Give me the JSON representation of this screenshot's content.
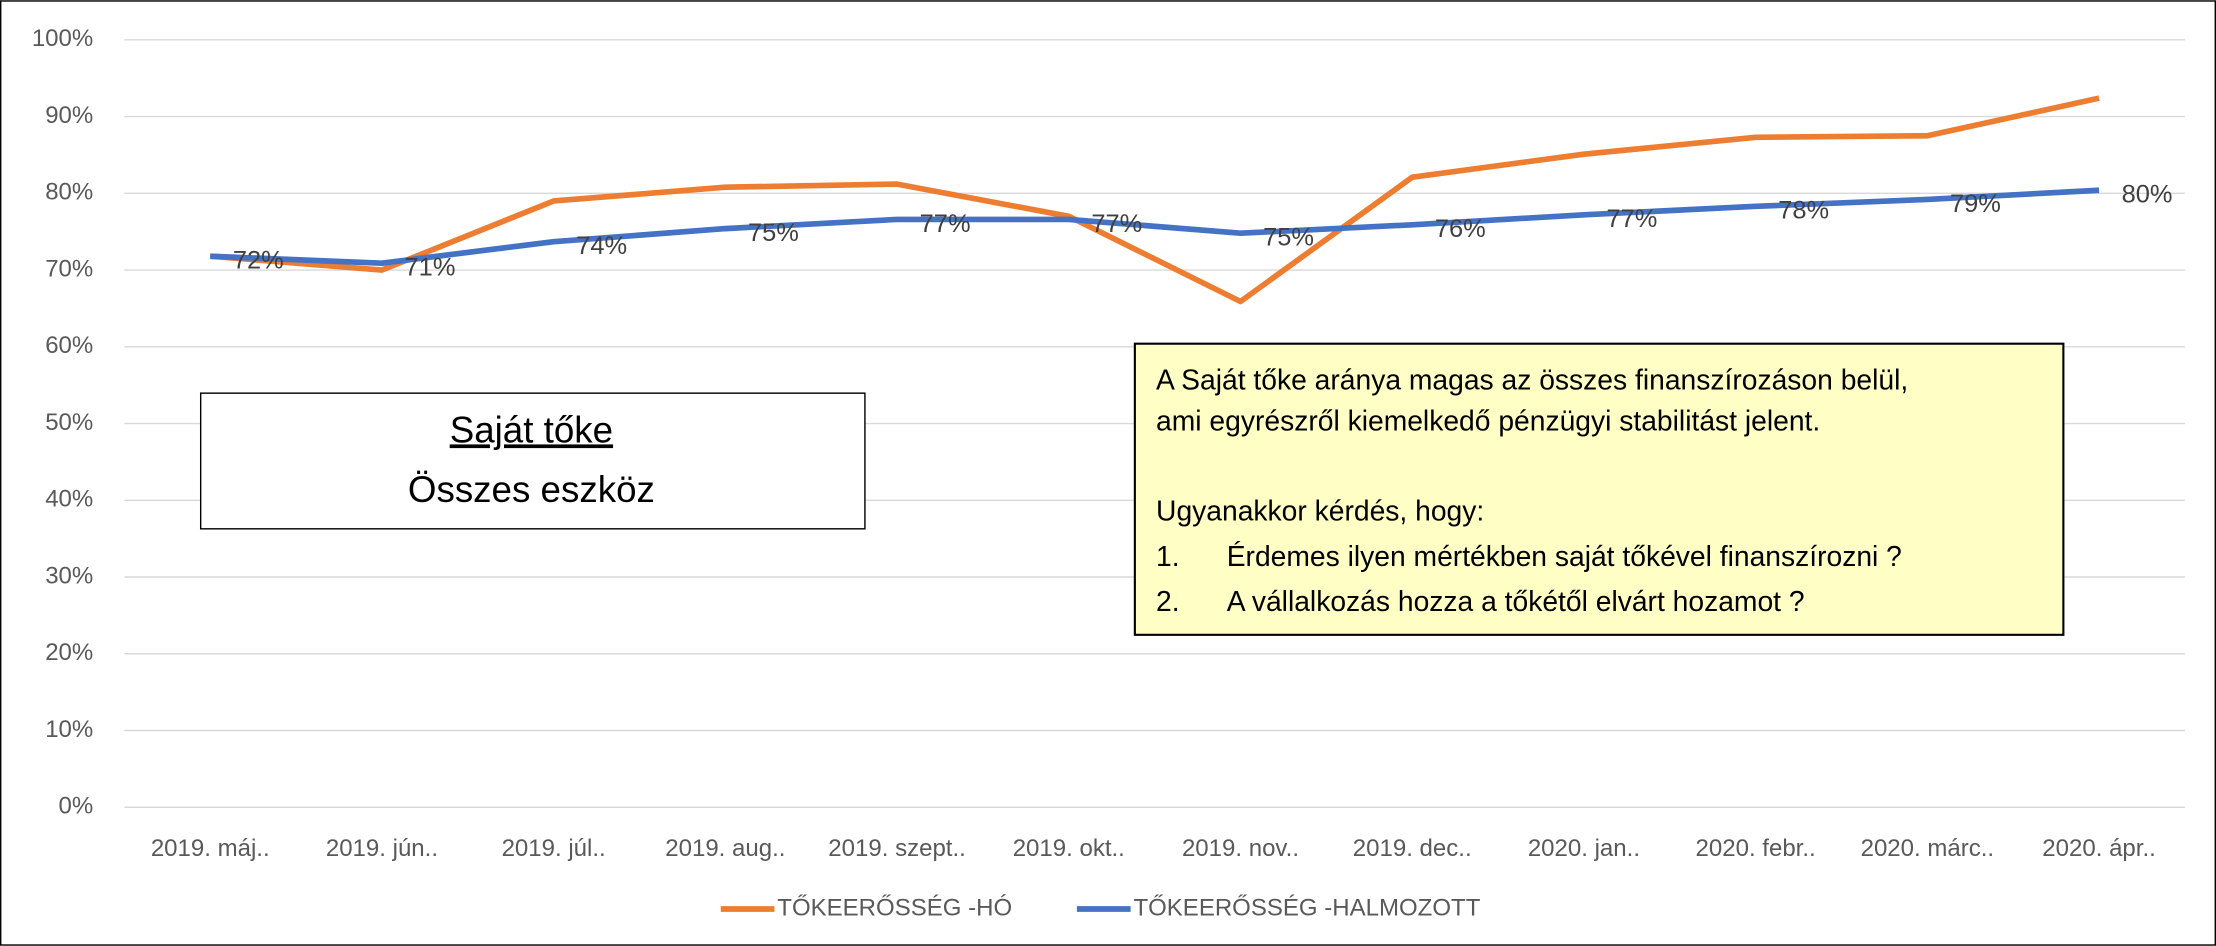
{
  "chart_data": {
    "type": "line",
    "categories": [
      "2019. máj..",
      "2019. jún..",
      "2019. júl..",
      "2019. aug..",
      "2019. szept..",
      "2019. okt..",
      "2019. nov..",
      "2019. dec..",
      "2020. jan..",
      "2020. febr..",
      "2020. márc..",
      "2020. ápr.."
    ],
    "series": [
      {
        "name": "TŐKEERŐSSÉG -HÓ",
        "color": "#ed7d31",
        "values": [
          71.8,
          70,
          79,
          80.8,
          81.2,
          77,
          65.9,
          82.1,
          85.1,
          87.3,
          87.5,
          92.4
        ]
      },
      {
        "name": "TŐKEERŐSSÉG -HALMOZOTT",
        "color": "#4472c4",
        "values": [
          71.8,
          70.9,
          73.7,
          75.4,
          76.6,
          76.6,
          74.8,
          75.9,
          77.2,
          78.3,
          79.2,
          80.4
        ],
        "value_labels": [
          "72%",
          "71%",
          "74%",
          "75%",
          "77%",
          "77%",
          "75%",
          "76%",
          "77%",
          "78%",
          "79%",
          "80%"
        ]
      }
    ],
    "ylim": [
      0,
      100
    ],
    "yticks": [
      {
        "value": 0,
        "label": "0%"
      },
      {
        "value": 10,
        "label": "10%"
      },
      {
        "value": 20,
        "label": "20%"
      },
      {
        "value": 30,
        "label": "30%"
      },
      {
        "value": 40,
        "label": "40%"
      },
      {
        "value": 50,
        "label": "50%"
      },
      {
        "value": 60,
        "label": "60%"
      },
      {
        "value": 70,
        "label": "70%"
      },
      {
        "value": 80,
        "label": "80%"
      },
      {
        "value": 90,
        "label": "90%"
      },
      {
        "value": 100,
        "label": "100%"
      }
    ],
    "grid": true,
    "legend": "bottom",
    "formula": {
      "numerator": "Saját tőke",
      "denominator": "Összes eszköz"
    },
    "note": {
      "lines": [
        "A Saját tőke aránya magas az összes finanszírozáson belül,",
        "ami egyrészről kiemelkedő pénzügyi stabilitást jelent.",
        "Ugyanakkor kérdés, hogy:"
      ],
      "list": [
        {
          "number": "1.",
          "text": "Érdemes ilyen mértékben saját tőkével finanszírozni ?"
        },
        {
          "number": "2.",
          "text": "A vállalkozás hozza a tőkétől elvárt hozamot ?"
        }
      ]
    }
  }
}
